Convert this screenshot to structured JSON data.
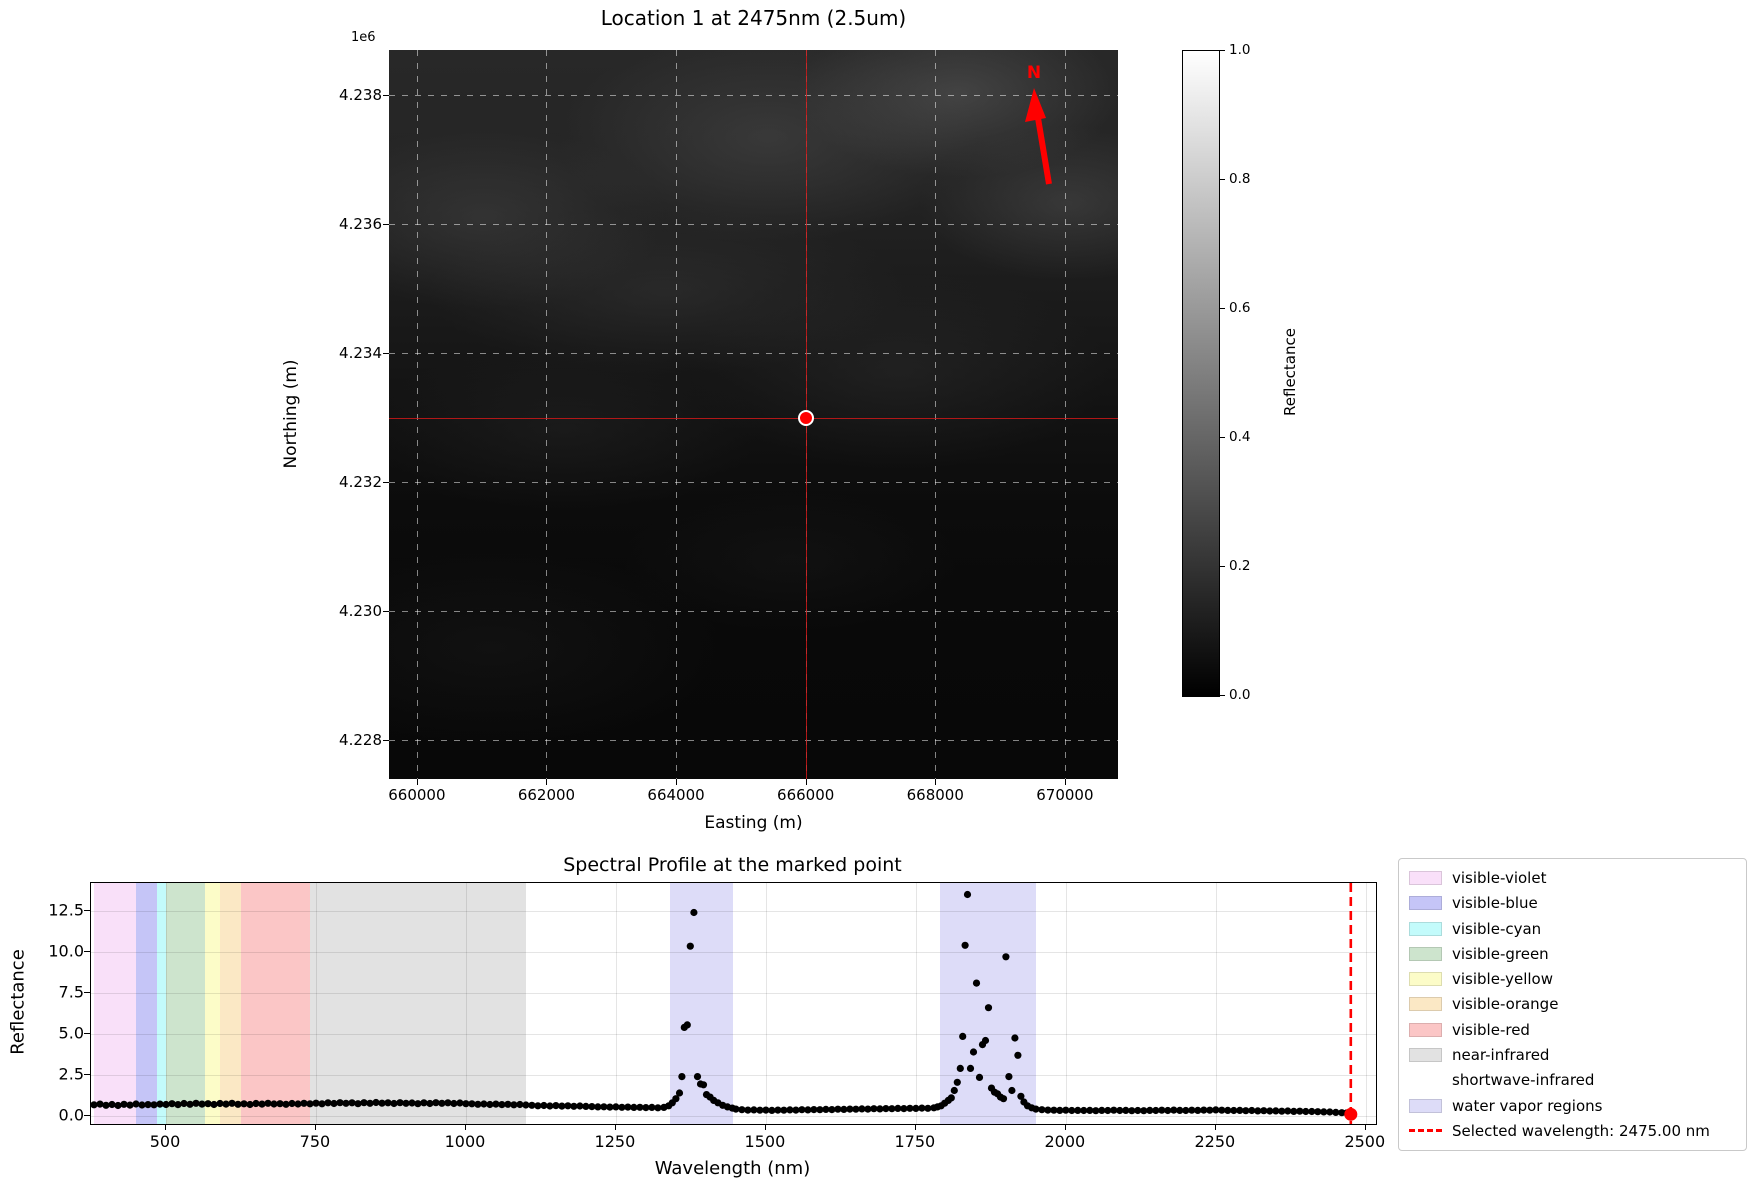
{
  "map": {
    "title": "Location 1 at 2475nm (2.5um)",
    "offset_label": "1e6",
    "xlabel": "Easting (m)",
    "ylabel": "Northing (m)",
    "north_label": "N",
    "xlim": [
      659570,
      670820
    ],
    "ylim": [
      4227400,
      4238700
    ],
    "x_ticks": [
      {
        "value": 660000,
        "label": "660000"
      },
      {
        "value": 662000,
        "label": "662000"
      },
      {
        "value": 664000,
        "label": "664000"
      },
      {
        "value": 666000,
        "label": "666000"
      },
      {
        "value": 668000,
        "label": "668000"
      },
      {
        "value": 670000,
        "label": "670000"
      }
    ],
    "y_ticks": [
      {
        "value": 4238000,
        "label": "4.238"
      },
      {
        "value": 4236000,
        "label": "4.236"
      },
      {
        "value": 4234000,
        "label": "4.234"
      },
      {
        "value": 4232000,
        "label": "4.232"
      },
      {
        "value": 4230000,
        "label": "4.230"
      },
      {
        "value": 4228000,
        "label": "4.228"
      }
    ],
    "marker": {
      "easting": 666000,
      "northing": 4233000,
      "color": "#ff0000"
    },
    "crosshair_color": "rgba(205,25,25,0.85)",
    "north_color": "#ff0000",
    "colorbar": {
      "label": "Reflectance",
      "ticks": [
        {
          "value": 1.0,
          "label": "1.0"
        },
        {
          "value": 0.8,
          "label": "0.8"
        },
        {
          "value": 0.6,
          "label": "0.6"
        },
        {
          "value": 0.4,
          "label": "0.4"
        },
        {
          "value": 0.2,
          "label": "0.2"
        },
        {
          "value": 0.0,
          "label": "0.0"
        }
      ]
    }
  },
  "chart_data": {
    "type": "scatter",
    "title": "Spectral Profile at the marked point",
    "xlabel": "Wavelength (nm)",
    "ylabel": "Reflectance",
    "xlim": [
      375,
      2517
    ],
    "ylim": [
      -0.49,
      14.2
    ],
    "x_ticks": [
      500,
      750,
      1000,
      1250,
      1500,
      1750,
      2000,
      2250,
      2500
    ],
    "y_ticks": [
      0.0,
      2.5,
      5.0,
      7.5,
      10.0,
      12.5
    ],
    "grid": true,
    "legend_position": "outside-right",
    "marker_color": "#000000",
    "bands": [
      {
        "label": "visible-violet",
        "color": "#f9e0f9",
        "ranges": [
          [
            380,
            450
          ]
        ]
      },
      {
        "label": "visible-blue",
        "color": "#c5c5f7",
        "ranges": [
          [
            450,
            485
          ]
        ]
      },
      {
        "label": "visible-cyan",
        "color": "#c3fbfb",
        "ranges": [
          [
            485,
            500
          ]
        ]
      },
      {
        "label": "visible-green",
        "color": "#cde4cd",
        "ranges": [
          [
            500,
            565
          ]
        ]
      },
      {
        "label": "visible-yellow",
        "color": "#fcfcc8",
        "ranges": [
          [
            565,
            590
          ]
        ]
      },
      {
        "label": "visible-orange",
        "color": "#fbe8c5",
        "ranges": [
          [
            590,
            625
          ]
        ]
      },
      {
        "label": "visible-red",
        "color": "#fbc6c6",
        "ranges": [
          [
            625,
            740
          ]
        ]
      },
      {
        "label": "near-infrared",
        "color": "#e2e2e2",
        "ranges": [
          [
            740,
            1100
          ]
        ]
      },
      {
        "label": "shortwave-infrared",
        "color": null,
        "ranges": [
          [
            1100,
            2500
          ]
        ]
      },
      {
        "label": "water vapor regions",
        "color": "#dddcf8",
        "ranges": [
          [
            1340,
            1445
          ],
          [
            1790,
            1950
          ]
        ]
      }
    ],
    "selected_wavelength": {
      "value": 2475,
      "reflectance": 0.1,
      "color": "#ff0000",
      "label": "Selected wavelength: 2475.00 nm"
    },
    "series": [
      {
        "name": "spectrum",
        "points": [
          [
            380,
            0.68
          ],
          [
            390,
            0.72
          ],
          [
            400,
            0.65
          ],
          [
            410,
            0.7
          ],
          [
            420,
            0.64
          ],
          [
            430,
            0.71
          ],
          [
            440,
            0.66
          ],
          [
            450,
            0.73
          ],
          [
            460,
            0.67
          ],
          [
            470,
            0.69
          ],
          [
            480,
            0.68
          ],
          [
            490,
            0.72
          ],
          [
            500,
            0.7
          ],
          [
            510,
            0.75
          ],
          [
            520,
            0.69
          ],
          [
            530,
            0.76
          ],
          [
            540,
            0.71
          ],
          [
            550,
            0.77
          ],
          [
            560,
            0.72
          ],
          [
            570,
            0.75
          ],
          [
            580,
            0.7
          ],
          [
            590,
            0.76
          ],
          [
            600,
            0.72
          ],
          [
            610,
            0.77
          ],
          [
            620,
            0.71
          ],
          [
            630,
            0.74
          ],
          [
            640,
            0.7
          ],
          [
            650,
            0.76
          ],
          [
            660,
            0.72
          ],
          [
            670,
            0.77
          ],
          [
            680,
            0.73
          ],
          [
            690,
            0.75
          ],
          [
            700,
            0.71
          ],
          [
            710,
            0.76
          ],
          [
            720,
            0.73
          ],
          [
            730,
            0.77
          ],
          [
            740,
            0.74
          ],
          [
            750,
            0.78
          ],
          [
            760,
            0.74
          ],
          [
            770,
            0.8
          ],
          [
            780,
            0.76
          ],
          [
            790,
            0.81
          ],
          [
            800,
            0.77
          ],
          [
            810,
            0.8
          ],
          [
            820,
            0.75
          ],
          [
            830,
            0.81
          ],
          [
            840,
            0.77
          ],
          [
            850,
            0.82
          ],
          [
            860,
            0.78
          ],
          [
            870,
            0.8
          ],
          [
            880,
            0.76
          ],
          [
            890,
            0.81
          ],
          [
            900,
            0.77
          ],
          [
            910,
            0.79
          ],
          [
            920,
            0.75
          ],
          [
            930,
            0.8
          ],
          [
            940,
            0.76
          ],
          [
            950,
            0.81
          ],
          [
            960,
            0.77
          ],
          [
            970,
            0.8
          ],
          [
            980,
            0.76
          ],
          [
            990,
            0.79
          ],
          [
            1000,
            0.75
          ],
          [
            1010,
            0.74
          ],
          [
            1020,
            0.71
          ],
          [
            1030,
            0.73
          ],
          [
            1040,
            0.7
          ],
          [
            1050,
            0.72
          ],
          [
            1060,
            0.69
          ],
          [
            1070,
            0.71
          ],
          [
            1080,
            0.68
          ],
          [
            1090,
            0.7
          ],
          [
            1100,
            0.67
          ],
          [
            1110,
            0.65
          ],
          [
            1120,
            0.62
          ],
          [
            1130,
            0.64
          ],
          [
            1140,
            0.61
          ],
          [
            1150,
            0.63
          ],
          [
            1160,
            0.6
          ],
          [
            1170,
            0.62
          ],
          [
            1180,
            0.59
          ],
          [
            1190,
            0.61
          ],
          [
            1200,
            0.58
          ],
          [
            1210,
            0.57
          ],
          [
            1220,
            0.55
          ],
          [
            1230,
            0.56
          ],
          [
            1240,
            0.54
          ],
          [
            1250,
            0.55
          ],
          [
            1260,
            0.53
          ],
          [
            1270,
            0.54
          ],
          [
            1280,
            0.52
          ],
          [
            1290,
            0.53
          ],
          [
            1300,
            0.51
          ],
          [
            1310,
            0.52
          ],
          [
            1320,
            0.5
          ],
          [
            1330,
            0.52
          ],
          [
            1338,
            0.62
          ],
          [
            1344,
            0.8
          ],
          [
            1350,
            1.05
          ],
          [
            1356,
            1.4
          ],
          [
            1360,
            2.4
          ],
          [
            1364,
            5.4
          ],
          [
            1369,
            5.55
          ],
          [
            1374,
            10.35
          ],
          [
            1380,
            12.4
          ],
          [
            1386,
            2.4
          ],
          [
            1391,
            1.95
          ],
          [
            1396,
            1.9
          ],
          [
            1401,
            1.3
          ],
          [
            1407,
            1.15
          ],
          [
            1413,
            0.95
          ],
          [
            1420,
            0.8
          ],
          [
            1428,
            0.65
          ],
          [
            1436,
            0.55
          ],
          [
            1444,
            0.48
          ],
          [
            1450,
            0.42
          ],
          [
            1460,
            0.38
          ],
          [
            1470,
            0.36
          ],
          [
            1480,
            0.37
          ],
          [
            1490,
            0.35
          ],
          [
            1500,
            0.36
          ],
          [
            1510,
            0.34
          ],
          [
            1520,
            0.36
          ],
          [
            1530,
            0.35
          ],
          [
            1540,
            0.37
          ],
          [
            1550,
            0.36
          ],
          [
            1560,
            0.38
          ],
          [
            1570,
            0.37
          ],
          [
            1580,
            0.39
          ],
          [
            1590,
            0.38
          ],
          [
            1600,
            0.4
          ],
          [
            1610,
            0.39
          ],
          [
            1620,
            0.41
          ],
          [
            1630,
            0.4
          ],
          [
            1640,
            0.42
          ],
          [
            1650,
            0.41
          ],
          [
            1660,
            0.43
          ],
          [
            1670,
            0.42
          ],
          [
            1680,
            0.44
          ],
          [
            1690,
            0.43
          ],
          [
            1700,
            0.45
          ],
          [
            1710,
            0.44
          ],
          [
            1720,
            0.46
          ],
          [
            1730,
            0.45
          ],
          [
            1740,
            0.47
          ],
          [
            1750,
            0.46
          ],
          [
            1760,
            0.48
          ],
          [
            1770,
            0.47
          ],
          [
            1780,
            0.5
          ],
          [
            1786,
            0.55
          ],
          [
            1792,
            0.62
          ],
          [
            1798,
            0.78
          ],
          [
            1804,
            0.95
          ],
          [
            1809,
            1.1
          ],
          [
            1814,
            1.55
          ],
          [
            1819,
            2.05
          ],
          [
            1824,
            2.9
          ],
          [
            1828,
            4.85
          ],
          [
            1832,
            10.4
          ],
          [
            1836,
            13.5
          ],
          [
            1841,
            2.9
          ],
          [
            1846,
            3.9
          ],
          [
            1851,
            8.1
          ],
          [
            1856,
            2.35
          ],
          [
            1861,
            4.35
          ],
          [
            1866,
            4.6
          ],
          [
            1871,
            6.6
          ],
          [
            1876,
            1.7
          ],
          [
            1881,
            1.45
          ],
          [
            1886,
            1.35
          ],
          [
            1891,
            1.15
          ],
          [
            1896,
            1.05
          ],
          [
            1900,
            9.7
          ],
          [
            1905,
            2.4
          ],
          [
            1910,
            1.55
          ],
          [
            1915,
            4.75
          ],
          [
            1920,
            3.7
          ],
          [
            1925,
            1.2
          ],
          [
            1930,
            0.85
          ],
          [
            1936,
            0.62
          ],
          [
            1943,
            0.5
          ],
          [
            1950,
            0.42
          ],
          [
            1960,
            0.38
          ],
          [
            1970,
            0.36
          ],
          [
            1980,
            0.35
          ],
          [
            1990,
            0.34
          ],
          [
            2000,
            0.35
          ],
          [
            2010,
            0.33
          ],
          [
            2020,
            0.34
          ],
          [
            2030,
            0.33
          ],
          [
            2040,
            0.34
          ],
          [
            2050,
            0.32
          ],
          [
            2060,
            0.34
          ],
          [
            2070,
            0.33
          ],
          [
            2080,
            0.35
          ],
          [
            2090,
            0.33
          ],
          [
            2100,
            0.34
          ],
          [
            2110,
            0.32
          ],
          [
            2120,
            0.33
          ],
          [
            2130,
            0.32
          ],
          [
            2140,
            0.34
          ],
          [
            2150,
            0.33
          ],
          [
            2160,
            0.35
          ],
          [
            2170,
            0.33
          ],
          [
            2180,
            0.36
          ],
          [
            2190,
            0.34
          ],
          [
            2200,
            0.33
          ],
          [
            2210,
            0.35
          ],
          [
            2220,
            0.34
          ],
          [
            2230,
            0.36
          ],
          [
            2240,
            0.35
          ],
          [
            2250,
            0.37
          ],
          [
            2260,
            0.35
          ],
          [
            2270,
            0.34
          ],
          [
            2280,
            0.33
          ],
          [
            2290,
            0.34
          ],
          [
            2300,
            0.32
          ],
          [
            2310,
            0.33
          ],
          [
            2320,
            0.31
          ],
          [
            2330,
            0.32
          ],
          [
            2340,
            0.3
          ],
          [
            2350,
            0.31
          ],
          [
            2360,
            0.29
          ],
          [
            2370,
            0.3
          ],
          [
            2380,
            0.28
          ],
          [
            2390,
            0.29
          ],
          [
            2400,
            0.27
          ],
          [
            2410,
            0.27
          ],
          [
            2420,
            0.26
          ],
          [
            2430,
            0.25
          ],
          [
            2440,
            0.24
          ],
          [
            2450,
            0.22
          ],
          [
            2460,
            0.2
          ],
          [
            2468,
            0.18
          ]
        ]
      }
    ]
  },
  "legend": {
    "items": [
      {
        "label": "visible-violet",
        "type": "patch",
        "color": "#f9e0f9"
      },
      {
        "label": "visible-blue",
        "type": "patch",
        "color": "#c5c5f7"
      },
      {
        "label": "visible-cyan",
        "type": "patch",
        "color": "#c3fbfb"
      },
      {
        "label": "visible-green",
        "type": "patch",
        "color": "#cde4cd"
      },
      {
        "label": "visible-yellow",
        "type": "patch",
        "color": "#fcfcc8"
      },
      {
        "label": "visible-orange",
        "type": "patch",
        "color": "#fbe8c5"
      },
      {
        "label": "visible-red",
        "type": "patch",
        "color": "#fbc6c6"
      },
      {
        "label": "near-infrared",
        "type": "patch",
        "color": "#e2e2e2"
      },
      {
        "label": "shortwave-infrared",
        "type": "patch",
        "color": "#ffffff"
      },
      {
        "label": "water vapor regions",
        "type": "patch",
        "color": "#dddcf8"
      },
      {
        "label": "Selected wavelength: 2475.00 nm",
        "type": "line",
        "color": "#ff0000"
      }
    ]
  }
}
